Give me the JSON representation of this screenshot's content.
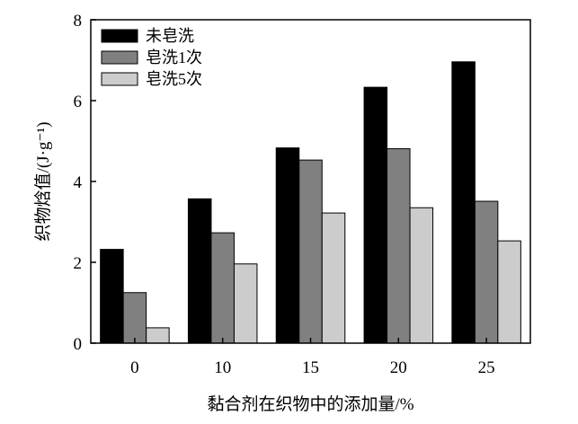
{
  "chart_data": {
    "type": "bar",
    "title": "",
    "xlabel": "黏合剂在织物中的添加量/%",
    "ylabel": "织物焓值/(J·g⁻¹)",
    "categories": [
      "0",
      "10",
      "15",
      "20",
      "25"
    ],
    "ylim": [
      0,
      8
    ],
    "yticks": [
      "0",
      "2",
      "4",
      "6",
      "8"
    ],
    "grid": false,
    "legend_position": "top-left",
    "series": [
      {
        "name": "未皂洗",
        "values": [
          2.32,
          3.57,
          4.83,
          6.33,
          6.96
        ],
        "color": "#000000"
      },
      {
        "name": "皂洗1次",
        "values": [
          1.25,
          2.73,
          4.53,
          4.81,
          3.51
        ],
        "color": "#808080"
      },
      {
        "name": "皂洗5次",
        "values": [
          0.38,
          1.96,
          3.22,
          3.35,
          2.53
        ],
        "color": "#cccccc"
      }
    ]
  }
}
